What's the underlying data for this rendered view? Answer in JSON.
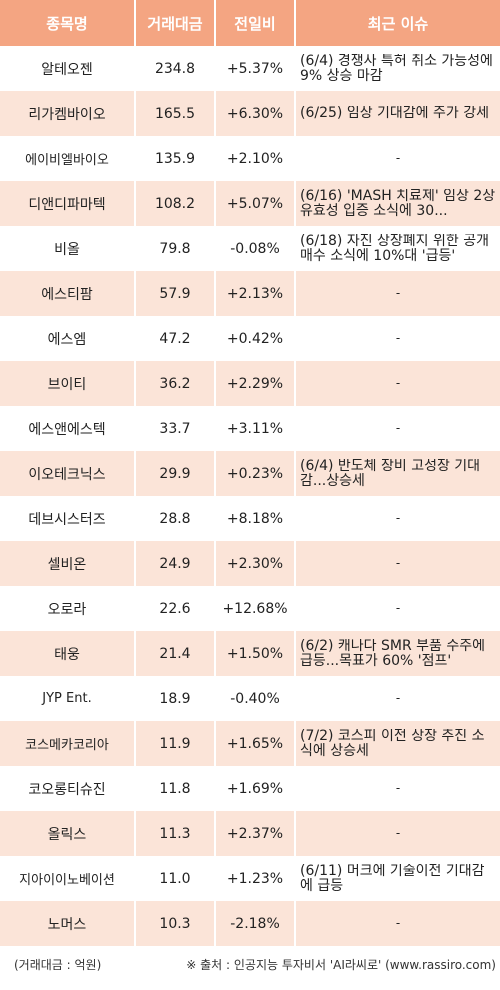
{
  "header": {
    "name": "종목명",
    "volume": "거래대금",
    "change": "전일비",
    "issue": "최근 이슈"
  },
  "rows": [
    {
      "name": "알테오젠",
      "volume": "234.8",
      "change": "+5.37%",
      "dir": "up",
      "issue": "(6/4) 경쟁사 특허 취소 가능성에 9% 상승 마감"
    },
    {
      "name": "리가켐바이오",
      "volume": "165.5",
      "change": "+6.30%",
      "dir": "up",
      "issue": "(6/25) 임상 기대감에 주가 강세"
    },
    {
      "name": "에이비엘바이오",
      "volume": "135.9",
      "change": "+2.10%",
      "dir": "up",
      "issue": "-"
    },
    {
      "name": "디앤디파마텍",
      "volume": "108.2",
      "change": "+5.07%",
      "dir": "up",
      "issue": "(6/16) 'MASH 치료제' 임상 2상 유효성 입증 소식에 30..."
    },
    {
      "name": "비올",
      "volume": "79.8",
      "change": "-0.08%",
      "dir": "down",
      "issue": "(6/18) 자진 상장폐지 위한 공개매수 소식에 10%대 '급등'"
    },
    {
      "name": "에스티팜",
      "volume": "57.9",
      "change": "+2.13%",
      "dir": "up",
      "issue": "-"
    },
    {
      "name": "에스엠",
      "volume": "47.2",
      "change": "+0.42%",
      "dir": "up",
      "issue": "-"
    },
    {
      "name": "브이티",
      "volume": "36.2",
      "change": "+2.29%",
      "dir": "up",
      "issue": "-"
    },
    {
      "name": "에스앤에스텍",
      "volume": "33.7",
      "change": "+3.11%",
      "dir": "up",
      "issue": "-"
    },
    {
      "name": "이오테크닉스",
      "volume": "29.9",
      "change": "+0.23%",
      "dir": "up",
      "issue": "(6/4) 반도체 장비 고성장 기대감...상승세"
    },
    {
      "name": "데브시스터즈",
      "volume": "28.8",
      "change": "+8.18%",
      "dir": "up",
      "issue": "-"
    },
    {
      "name": "셀비온",
      "volume": "24.9",
      "change": "+2.30%",
      "dir": "up",
      "issue": "-"
    },
    {
      "name": "오로라",
      "volume": "22.6",
      "change": "+12.68%",
      "dir": "up",
      "issue": "-"
    },
    {
      "name": "태웅",
      "volume": "21.4",
      "change": "+1.50%",
      "dir": "up",
      "issue": "(6/2) 캐나다 SMR 부품 수주에 급등...목표가 60% '점프'"
    },
    {
      "name": "JYP Ent.",
      "volume": "18.9",
      "change": "-0.40%",
      "dir": "down",
      "issue": "-"
    },
    {
      "name": "코스메카코리아",
      "volume": "11.9",
      "change": "+1.65%",
      "dir": "up",
      "issue": "(7/2) 코스피 이전 상장 추진 소식에 상승세"
    },
    {
      "name": "코오롱티슈진",
      "volume": "11.8",
      "change": "+1.69%",
      "dir": "up",
      "issue": "-"
    },
    {
      "name": "올릭스",
      "volume": "11.3",
      "change": "+2.37%",
      "dir": "up",
      "issue": "-"
    },
    {
      "name": "지아이이노베이션",
      "volume": "11.0",
      "change": "+1.23%",
      "dir": "up",
      "issue": "(6/11) 머크에 기술이전 기대감에 급등"
    },
    {
      "name": "노머스",
      "volume": "10.3",
      "change": "-2.18%",
      "dir": "down",
      "issue": "-"
    }
  ],
  "footer": {
    "unit": "(거래대금 : 억원)",
    "source": "※ 출처 : 인공지능 투자비서 'AI라씨로' (www.rassiro.com)"
  },
  "colors": {
    "header_bg": "#f4a582",
    "stripe_bg": "#fbe4d8",
    "up": "#e8172b",
    "down": "#1a2fc9"
  }
}
